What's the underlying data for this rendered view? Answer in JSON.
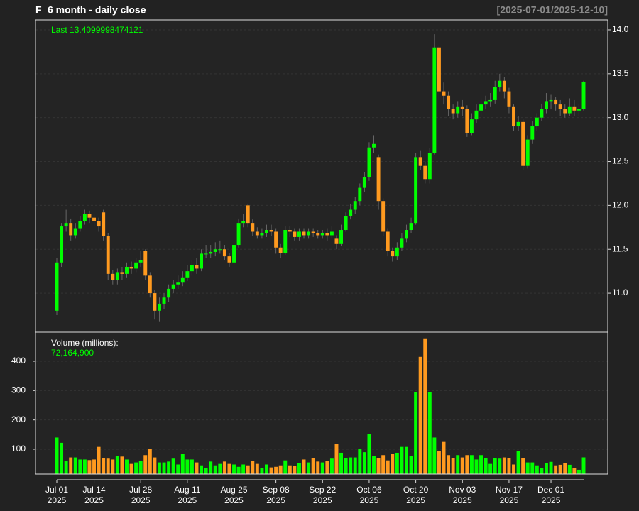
{
  "chart_data": [
    {
      "type": "candlestick",
      "symbol": "F",
      "title": "6 month - daily close",
      "subtitle": "[2025-07-01/2025-12-10]",
      "last_text": "Last 13.4099998474121",
      "x": [
        "2025-07-01",
        "2025-07-02",
        "2025-07-03",
        "2025-07-07",
        "2025-07-08",
        "2025-07-09",
        "2025-07-10",
        "2025-07-11",
        "2025-07-14",
        "2025-07-15",
        "2025-07-16",
        "2025-07-17",
        "2025-07-18",
        "2025-07-21",
        "2025-07-22",
        "2025-07-23",
        "2025-07-24",
        "2025-07-25",
        "2025-07-28",
        "2025-07-29",
        "2025-07-30",
        "2025-07-31",
        "2025-08-01",
        "2025-08-04",
        "2025-08-05",
        "2025-08-06",
        "2025-08-07",
        "2025-08-08",
        "2025-08-11",
        "2025-08-12",
        "2025-08-13",
        "2025-08-14",
        "2025-08-15",
        "2025-08-18",
        "2025-08-19",
        "2025-08-20",
        "2025-08-21",
        "2025-08-22",
        "2025-08-25",
        "2025-08-26",
        "2025-08-27",
        "2025-08-28",
        "2025-08-29",
        "2025-09-02",
        "2025-09-03",
        "2025-09-04",
        "2025-09-05",
        "2025-09-08",
        "2025-09-09",
        "2025-09-10",
        "2025-09-11",
        "2025-09-12",
        "2025-09-15",
        "2025-09-16",
        "2025-09-17",
        "2025-09-18",
        "2025-09-19",
        "2025-09-22",
        "2025-09-23",
        "2025-09-24",
        "2025-09-25",
        "2025-09-26",
        "2025-09-29",
        "2025-09-30",
        "2025-10-01",
        "2025-10-02",
        "2025-10-03",
        "2025-10-06",
        "2025-10-07",
        "2025-10-08",
        "2025-10-09",
        "2025-10-10",
        "2025-10-13",
        "2025-10-14",
        "2025-10-15",
        "2025-10-16",
        "2025-10-17",
        "2025-10-20",
        "2025-10-21",
        "2025-10-22",
        "2025-10-23",
        "2025-10-24",
        "2025-10-27",
        "2025-10-28",
        "2025-10-29",
        "2025-10-30",
        "2025-10-31",
        "2025-11-03",
        "2025-11-04",
        "2025-11-05",
        "2025-11-06",
        "2025-11-07",
        "2025-11-10",
        "2025-11-11",
        "2025-11-12",
        "2025-11-13",
        "2025-11-14",
        "2025-11-17",
        "2025-11-18",
        "2025-11-19",
        "2025-11-20",
        "2025-11-21",
        "2025-11-24",
        "2025-11-25",
        "2025-11-26",
        "2025-11-28",
        "2025-12-01",
        "2025-12-02",
        "2025-12-03",
        "2025-12-04",
        "2025-12-05",
        "2025-12-08",
        "2025-12-09",
        "2025-12-10"
      ],
      "open": [
        10.8,
        11.35,
        11.76,
        11.8,
        11.66,
        11.74,
        11.82,
        11.9,
        11.86,
        11.82,
        11.92,
        11.65,
        11.22,
        11.15,
        11.24,
        11.22,
        11.3,
        11.28,
        11.35,
        11.48,
        11.2,
        11.0,
        10.8,
        10.88,
        10.95,
        11.05,
        11.1,
        11.12,
        11.18,
        11.25,
        11.32,
        11.28,
        11.45,
        11.45,
        11.47,
        11.5,
        11.5,
        11.42,
        11.35,
        11.55,
        11.8,
        12.0,
        11.8,
        11.7,
        11.66,
        11.68,
        11.72,
        11.7,
        11.52,
        11.46,
        11.72,
        11.7,
        11.64,
        11.7,
        11.66,
        11.7,
        11.68,
        11.66,
        11.68,
        11.66,
        11.62,
        11.56,
        11.72,
        11.88,
        11.95,
        12.05,
        12.2,
        12.32,
        12.66,
        12.55,
        12.05,
        11.7,
        11.48,
        11.42,
        11.52,
        11.62,
        11.72,
        11.8,
        12.55,
        12.45,
        12.3,
        12.6,
        13.8,
        13.3,
        13.25,
        13.1,
        13.05,
        13.12,
        13.1,
        12.82,
        12.98,
        13.08,
        13.15,
        13.18,
        13.2,
        13.35,
        13.42,
        13.3,
        13.12,
        12.9,
        12.95,
        12.45,
        12.75,
        12.9,
        13.0,
        13.1,
        13.18,
        13.2,
        13.15,
        13.1,
        13.05,
        13.12,
        13.08,
        13.1
      ],
      "high": [
        11.4,
        11.8,
        11.95,
        11.85,
        11.8,
        11.88,
        11.95,
        11.94,
        11.9,
        11.86,
        11.95,
        11.68,
        11.26,
        11.28,
        11.3,
        11.35,
        11.36,
        11.4,
        11.48,
        11.5,
        11.24,
        11.04,
        10.95,
        11.0,
        11.1,
        11.15,
        11.2,
        11.25,
        11.32,
        11.38,
        11.4,
        11.5,
        11.55,
        11.55,
        11.58,
        11.6,
        11.55,
        11.46,
        11.6,
        11.85,
        11.9,
        12.02,
        11.84,
        11.75,
        11.74,
        11.78,
        11.78,
        11.74,
        11.56,
        11.76,
        11.76,
        11.74,
        11.74,
        11.74,
        11.74,
        11.74,
        11.72,
        11.72,
        11.74,
        11.76,
        11.66,
        11.78,
        11.92,
        12.02,
        12.1,
        12.25,
        12.38,
        12.72,
        12.8,
        12.58,
        12.08,
        11.74,
        11.52,
        11.58,
        11.68,
        11.78,
        11.86,
        12.6,
        12.62,
        12.5,
        12.65,
        13.95,
        13.82,
        13.4,
        13.3,
        13.15,
        13.18,
        13.2,
        13.14,
        13.05,
        13.15,
        13.22,
        13.25,
        13.28,
        13.42,
        13.5,
        13.46,
        13.34,
        13.15,
        13.02,
        12.98,
        12.8,
        12.96,
        13.05,
        13.16,
        13.28,
        13.26,
        13.24,
        13.2,
        13.15,
        13.22,
        13.2,
        13.16,
        13.42
      ],
      "low": [
        10.75,
        11.3,
        11.7,
        11.6,
        11.62,
        11.7,
        11.78,
        11.8,
        11.76,
        11.7,
        11.6,
        11.15,
        11.1,
        11.1,
        11.15,
        11.18,
        11.22,
        11.24,
        11.3,
        11.15,
        10.95,
        10.7,
        10.68,
        10.82,
        10.9,
        11.0,
        11.05,
        11.08,
        11.14,
        11.2,
        11.22,
        11.25,
        11.4,
        11.4,
        11.42,
        11.45,
        11.38,
        11.3,
        11.32,
        11.52,
        11.75,
        11.75,
        11.65,
        11.62,
        11.62,
        11.64,
        11.65,
        11.45,
        11.4,
        11.44,
        11.64,
        11.6,
        11.6,
        11.62,
        11.62,
        11.64,
        11.62,
        11.62,
        11.6,
        11.62,
        11.5,
        11.54,
        11.7,
        11.84,
        11.9,
        12.0,
        12.15,
        12.28,
        12.6,
        11.95,
        11.65,
        11.42,
        11.36,
        11.38,
        11.48,
        11.58,
        11.68,
        11.78,
        12.4,
        12.25,
        12.25,
        12.58,
        13.2,
        13.15,
        13.02,
        12.98,
        13.0,
        13.02,
        12.78,
        12.8,
        12.94,
        13.02,
        13.1,
        13.12,
        13.16,
        13.3,
        13.22,
        13.05,
        12.85,
        12.85,
        12.4,
        12.42,
        12.7,
        12.85,
        12.96,
        13.05,
        13.1,
        13.08,
        13.02,
        13.0,
        13.02,
        13.02,
        13.02,
        13.08
      ],
      "close": [
        11.35,
        11.76,
        11.8,
        11.66,
        11.74,
        11.82,
        11.9,
        11.86,
        11.82,
        11.76,
        11.65,
        11.22,
        11.15,
        11.24,
        11.22,
        11.3,
        11.28,
        11.35,
        11.38,
        11.2,
        11.0,
        10.8,
        10.88,
        10.95,
        11.05,
        11.1,
        11.12,
        11.18,
        11.25,
        11.32,
        11.28,
        11.45,
        11.45,
        11.47,
        11.5,
        11.5,
        11.42,
        11.35,
        11.55,
        11.8,
        11.82,
        11.8,
        11.7,
        11.66,
        11.68,
        11.72,
        11.7,
        11.52,
        11.46,
        11.72,
        11.7,
        11.64,
        11.7,
        11.66,
        11.7,
        11.68,
        11.66,
        11.68,
        11.66,
        11.7,
        11.56,
        11.72,
        11.88,
        11.95,
        12.05,
        12.2,
        12.32,
        12.66,
        12.7,
        12.05,
        11.7,
        11.48,
        11.42,
        11.52,
        11.62,
        11.72,
        11.8,
        12.55,
        12.45,
        12.3,
        12.6,
        13.8,
        13.3,
        13.25,
        13.1,
        13.05,
        13.12,
        13.1,
        12.82,
        12.98,
        13.08,
        13.15,
        13.18,
        13.2,
        13.35,
        13.42,
        13.3,
        13.12,
        12.9,
        12.95,
        12.45,
        12.75,
        12.9,
        13.0,
        13.1,
        13.18,
        13.2,
        13.15,
        13.1,
        13.05,
        13.12,
        13.08,
        13.1,
        13.4099998474121
      ],
      "up_color": "#00ff00",
      "down_color": "#ff9a1f",
      "ylim": [
        10.556,
        14.113
      ],
      "yticks": [
        {
          "value": 11,
          "label": "11.0"
        },
        11.5,
        {
          "value": 12,
          "label": "12.0"
        },
        12.5,
        {
          "value": 13,
          "label": "13.0"
        },
        13.5,
        {
          "value": 14,
          "label": "14.0"
        }
      ],
      "grid": true
    },
    {
      "type": "volume",
      "title": "Volume (millions):",
      "last_text": "72,164,900",
      "values": [
        140,
        122,
        60,
        72,
        72,
        65,
        65,
        63,
        65,
        108,
        70,
        68,
        65,
        78,
        75,
        65,
        50,
        55,
        60,
        80,
        100,
        72,
        55,
        55,
        58,
        68,
        48,
        85,
        65,
        65,
        55,
        45,
        35,
        58,
        45,
        50,
        58,
        50,
        48,
        40,
        48,
        45,
        60,
        50,
        35,
        48,
        38,
        40,
        45,
        62,
        45,
        42,
        52,
        65,
        55,
        70,
        58,
        55,
        60,
        68,
        118,
        88,
        70,
        72,
        72,
        100,
        90,
        152,
        78,
        70,
        80,
        62,
        85,
        88,
        108,
        108,
        78,
        295,
        415,
        478,
        295,
        140,
        95,
        125,
        80,
        70,
        80,
        72,
        80,
        80,
        65,
        80,
        70,
        50,
        70,
        68,
        72,
        70,
        48,
        95,
        70,
        55,
        55,
        45,
        35,
        52,
        57,
        45,
        47,
        52,
        47,
        35,
        30,
        72.1649
      ],
      "ylim": [
        15.3,
        499.2
      ],
      "yticks": [
        100,
        200,
        300,
        400
      ],
      "grid": true,
      "xticks": [
        {
          "value": "2025-07-01",
          "label": [
            "Jul 01",
            "2025"
          ]
        },
        {
          "value": "2025-07-14",
          "label": [
            "Jul 14",
            "2025"
          ]
        },
        {
          "value": "2025-07-28",
          "label": [
            "Jul 28",
            "2025"
          ]
        },
        {
          "value": "2025-08-11",
          "label": [
            "Aug 11",
            "2025"
          ]
        },
        {
          "value": "2025-08-25",
          "label": [
            "Aug 25",
            "2025"
          ]
        },
        {
          "value": "2025-09-08",
          "label": [
            "Sep 08",
            "2025"
          ]
        },
        {
          "value": "2025-09-22",
          "label": [
            "Sep 22",
            "2025"
          ]
        },
        {
          "value": "2025-10-06",
          "label": [
            "Oct 06",
            "2025"
          ]
        },
        {
          "value": "2025-10-20",
          "label": [
            "Oct 20",
            "2025"
          ]
        },
        {
          "value": "2025-11-03",
          "label": [
            "Nov 03",
            "2025"
          ]
        },
        {
          "value": "2025-11-17",
          "label": [
            "Nov 17",
            "2025"
          ]
        },
        {
          "value": "2025-12-01",
          "label": [
            "Dec 01",
            "2025"
          ]
        }
      ]
    }
  ]
}
